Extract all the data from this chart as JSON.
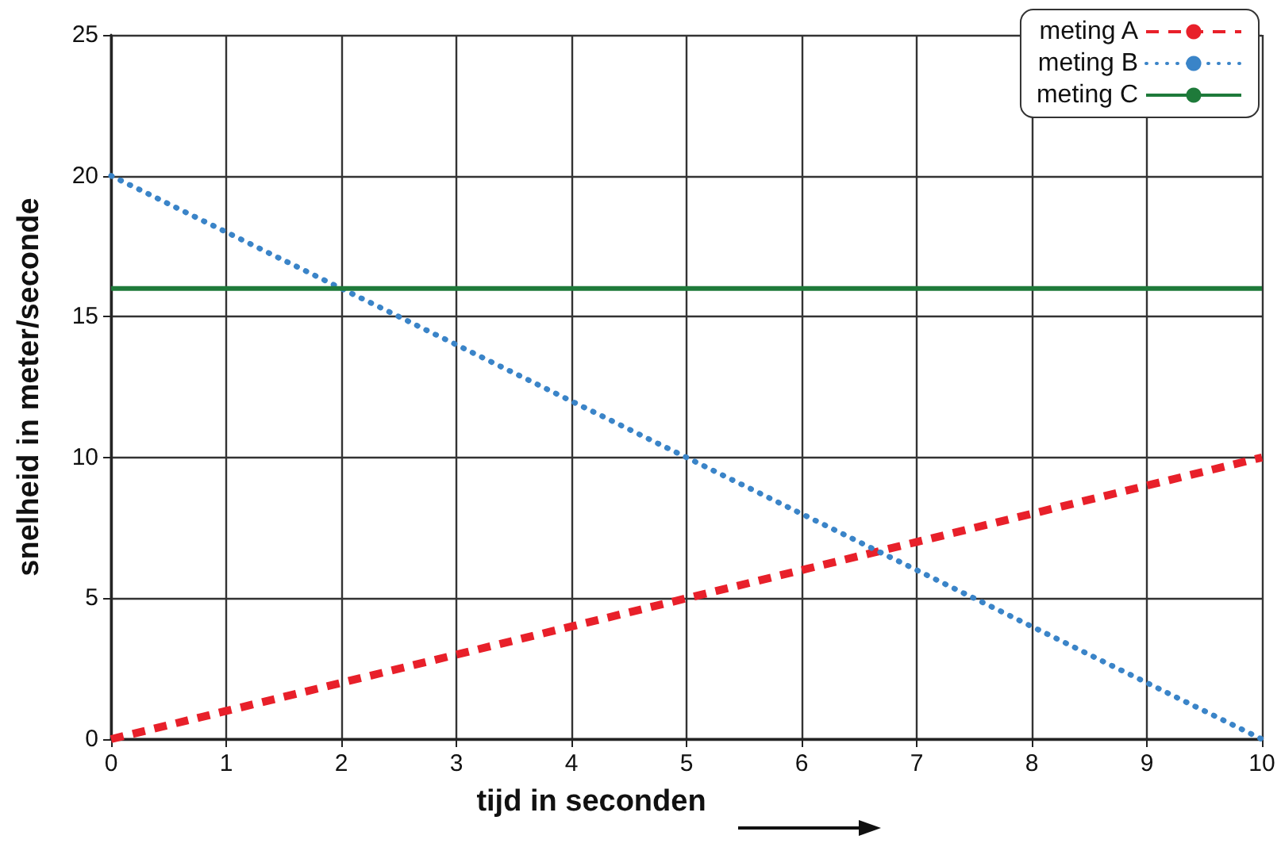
{
  "chart_data": {
    "type": "line",
    "xlabel": "tijd in seconden",
    "ylabel": "snelheid in meter/seconde",
    "x": [
      0,
      1,
      2,
      3,
      4,
      5,
      6,
      7,
      8,
      9,
      10
    ],
    "series": [
      {
        "name": "meting A",
        "color": "#e8202a",
        "line_style": "dashed",
        "values": [
          0,
          1,
          2,
          3,
          4,
          5,
          6,
          7,
          8,
          9,
          10
        ]
      },
      {
        "name": "meting B",
        "color": "#3a84c8",
        "line_style": "dotted",
        "values": [
          20,
          18,
          16,
          14,
          12,
          10,
          8,
          6,
          4,
          2,
          0
        ]
      },
      {
        "name": "meting C",
        "color": "#1e7a3a",
        "line_style": "solid",
        "values": [
          16,
          16,
          16,
          16,
          16,
          16,
          16,
          16,
          16,
          16,
          16
        ]
      }
    ],
    "xlim": [
      0,
      10
    ],
    "xticks": [
      0,
      1,
      2,
      3,
      4,
      5,
      6,
      7,
      8,
      9,
      10
    ],
    "ylim": [
      0,
      25
    ],
    "yticks": [
      0,
      5,
      10,
      15,
      20,
      25
    ],
    "grid": true,
    "legend": "top right",
    "marker": "none"
  }
}
